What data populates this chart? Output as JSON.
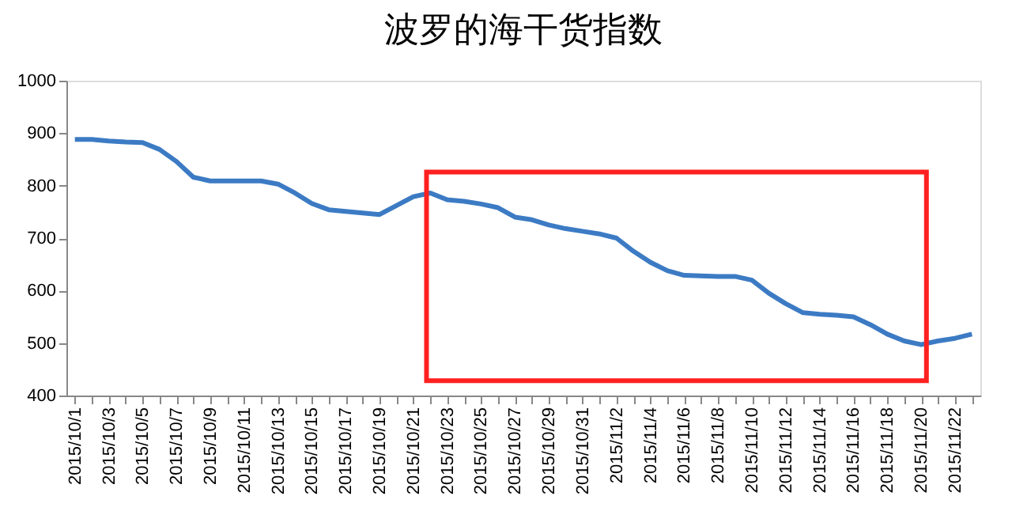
{
  "chart_data": {
    "type": "line",
    "title": "波罗的海干货指数",
    "categories": [
      "2015/10/1",
      null,
      "2015/10/3",
      null,
      "2015/10/5",
      null,
      "2015/10/7",
      null,
      "2015/10/9",
      null,
      "2015/10/11",
      null,
      "2015/10/13",
      null,
      "2015/10/15",
      null,
      "2015/10/17",
      null,
      "2015/10/19",
      null,
      "2015/10/21",
      null,
      "2015/10/23",
      null,
      "2015/10/25",
      null,
      "2015/10/27",
      null,
      "2015/10/29",
      null,
      "2015/10/31",
      null,
      "2015/11/2",
      null,
      "2015/11/4",
      null,
      "2015/11/6",
      null,
      "2015/11/8",
      null,
      "2015/11/10",
      null,
      "2015/11/12",
      null,
      "2015/11/14",
      null,
      "2015/11/16",
      null,
      "2015/11/18",
      null,
      "2015/11/20",
      null,
      "2015/11/22",
      null
    ],
    "series": [
      {
        "color": "#3c7bc4",
        "values": [
          888,
          888,
          885,
          883,
          882,
          869,
          846,
          816,
          809,
          809,
          809,
          809,
          803,
          786,
          766,
          754,
          751,
          748,
          745,
          762,
          779,
          786,
          773,
          770,
          765,
          758,
          740,
          735,
          725,
          718,
          713,
          708,
          700,
          675,
          654,
          638,
          629,
          628,
          627,
          627,
          620,
          595,
          575,
          558,
          555,
          553,
          550,
          535,
          517,
          504,
          497,
          504,
          509,
          517
        ]
      }
    ],
    "ylim": [
      400,
      1000
    ],
    "yticks": [
      400,
      500,
      600,
      700,
      800,
      900,
      1000
    ],
    "grid": false,
    "marker": "none",
    "line_style": "solid"
  }
}
